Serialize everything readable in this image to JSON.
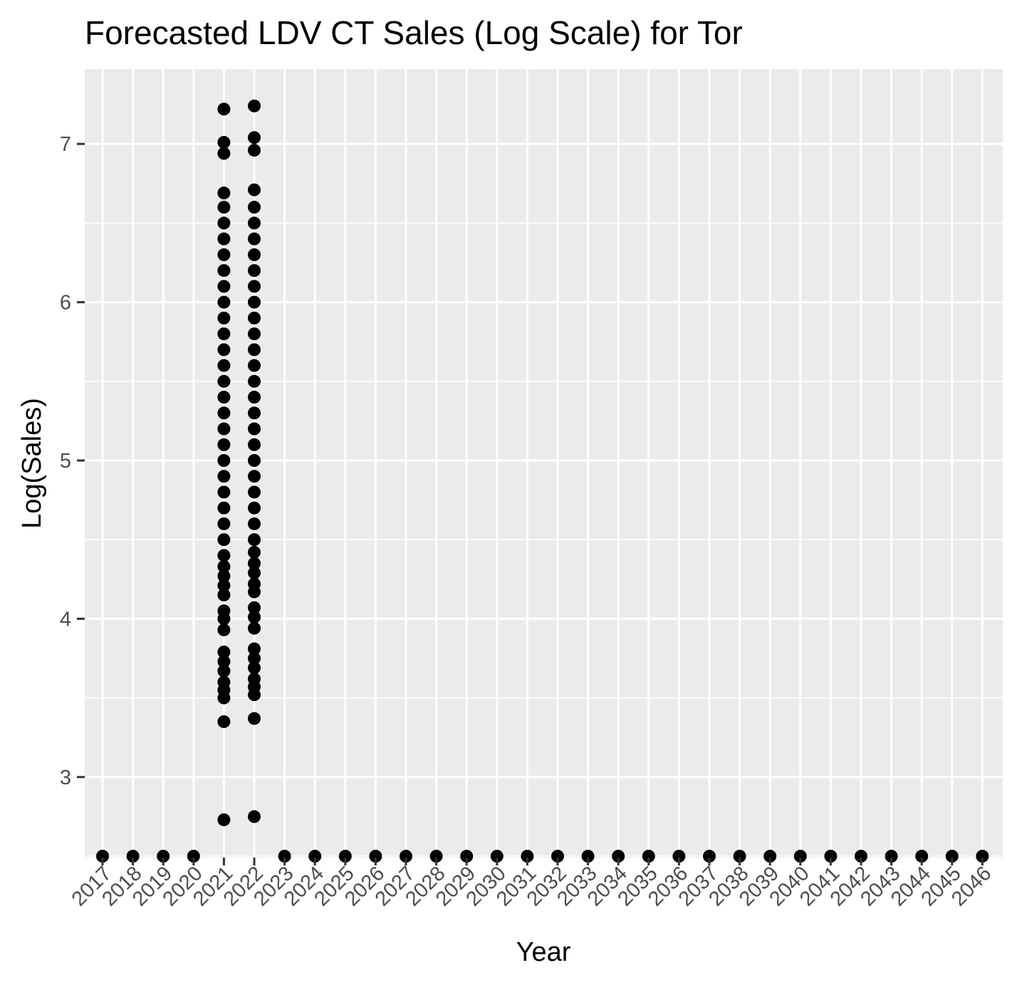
{
  "chart_data": {
    "type": "scatter",
    "title": "Forecasted LDV CT Sales (Log Scale) for Tor",
    "xlabel": "Year",
    "ylabel": "Log(Sales)",
    "x_categories": [
      "2017",
      "2018",
      "2019",
      "2020",
      "2021",
      "2022",
      "2023",
      "2024",
      "2025",
      "2026",
      "2027",
      "2028",
      "2029",
      "2030",
      "2031",
      "2032",
      "2033",
      "2034",
      "2035",
      "2036",
      "2037",
      "2038",
      "2039",
      "2040",
      "2041",
      "2042",
      "2043",
      "2044",
      "2045",
      "2046"
    ],
    "y_ticks": [
      3,
      4,
      5,
      6,
      7
    ],
    "ylim": [
      2.5,
      7.45
    ],
    "grid": true,
    "background": "#ebebeb",
    "point_color": "#000000",
    "series": [
      {
        "points": [
          {
            "x": "2017",
            "y": 2.5
          },
          {
            "x": "2018",
            "y": 2.5
          },
          {
            "x": "2019",
            "y": 2.5
          },
          {
            "x": "2020",
            "y": 2.5
          },
          {
            "x": "2021",
            "y": 7.22
          },
          {
            "x": "2021",
            "y": 7.01
          },
          {
            "x": "2021",
            "y": 6.94
          },
          {
            "x": "2021",
            "y": 6.69
          },
          {
            "x": "2021",
            "y": 6.6
          },
          {
            "x": "2021",
            "y": 6.5
          },
          {
            "x": "2021",
            "y": 6.4
          },
          {
            "x": "2021",
            "y": 6.3
          },
          {
            "x": "2021",
            "y": 6.2
          },
          {
            "x": "2021",
            "y": 6.1
          },
          {
            "x": "2021",
            "y": 6.0
          },
          {
            "x": "2021",
            "y": 5.9
          },
          {
            "x": "2021",
            "y": 5.8
          },
          {
            "x": "2021",
            "y": 5.7
          },
          {
            "x": "2021",
            "y": 5.6
          },
          {
            "x": "2021",
            "y": 5.5
          },
          {
            "x": "2021",
            "y": 5.4
          },
          {
            "x": "2021",
            "y": 5.3
          },
          {
            "x": "2021",
            "y": 5.2
          },
          {
            "x": "2021",
            "y": 5.1
          },
          {
            "x": "2021",
            "y": 5.0
          },
          {
            "x": "2021",
            "y": 4.9
          },
          {
            "x": "2021",
            "y": 4.8
          },
          {
            "x": "2021",
            "y": 4.7
          },
          {
            "x": "2021",
            "y": 4.6
          },
          {
            "x": "2021",
            "y": 4.5
          },
          {
            "x": "2021",
            "y": 4.4
          },
          {
            "x": "2021",
            "y": 4.33
          },
          {
            "x": "2021",
            "y": 4.27
          },
          {
            "x": "2021",
            "y": 4.21
          },
          {
            "x": "2021",
            "y": 4.15
          },
          {
            "x": "2021",
            "y": 4.05
          },
          {
            "x": "2021",
            "y": 4.0
          },
          {
            "x": "2021",
            "y": 3.93
          },
          {
            "x": "2021",
            "y": 3.79
          },
          {
            "x": "2021",
            "y": 3.73
          },
          {
            "x": "2021",
            "y": 3.67
          },
          {
            "x": "2021",
            "y": 3.6
          },
          {
            "x": "2021",
            "y": 3.55
          },
          {
            "x": "2021",
            "y": 3.5
          },
          {
            "x": "2021",
            "y": 3.35
          },
          {
            "x": "2021",
            "y": 2.73
          },
          {
            "x": "2022",
            "y": 7.24
          },
          {
            "x": "2022",
            "y": 7.04
          },
          {
            "x": "2022",
            "y": 6.96
          },
          {
            "x": "2022",
            "y": 6.71
          },
          {
            "x": "2022",
            "y": 6.6
          },
          {
            "x": "2022",
            "y": 6.5
          },
          {
            "x": "2022",
            "y": 6.4
          },
          {
            "x": "2022",
            "y": 6.3
          },
          {
            "x": "2022",
            "y": 6.2
          },
          {
            "x": "2022",
            "y": 6.1
          },
          {
            "x": "2022",
            "y": 6.0
          },
          {
            "x": "2022",
            "y": 5.9
          },
          {
            "x": "2022",
            "y": 5.8
          },
          {
            "x": "2022",
            "y": 5.7
          },
          {
            "x": "2022",
            "y": 5.6
          },
          {
            "x": "2022",
            "y": 5.5
          },
          {
            "x": "2022",
            "y": 5.4
          },
          {
            "x": "2022",
            "y": 5.3
          },
          {
            "x": "2022",
            "y": 5.2
          },
          {
            "x": "2022",
            "y": 5.1
          },
          {
            "x": "2022",
            "y": 5.0
          },
          {
            "x": "2022",
            "y": 4.9
          },
          {
            "x": "2022",
            "y": 4.8
          },
          {
            "x": "2022",
            "y": 4.7
          },
          {
            "x": "2022",
            "y": 4.6
          },
          {
            "x": "2022",
            "y": 4.5
          },
          {
            "x": "2022",
            "y": 4.42
          },
          {
            "x": "2022",
            "y": 4.35
          },
          {
            "x": "2022",
            "y": 4.29
          },
          {
            "x": "2022",
            "y": 4.22
          },
          {
            "x": "2022",
            "y": 4.17
          },
          {
            "x": "2022",
            "y": 4.07
          },
          {
            "x": "2022",
            "y": 4.01
          },
          {
            "x": "2022",
            "y": 3.94
          },
          {
            "x": "2022",
            "y": 3.81
          },
          {
            "x": "2022",
            "y": 3.75
          },
          {
            "x": "2022",
            "y": 3.69
          },
          {
            "x": "2022",
            "y": 3.62
          },
          {
            "x": "2022",
            "y": 3.57
          },
          {
            "x": "2022",
            "y": 3.52
          },
          {
            "x": "2022",
            "y": 3.37
          },
          {
            "x": "2022",
            "y": 2.75
          },
          {
            "x": "2023",
            "y": 2.5
          },
          {
            "x": "2024",
            "y": 2.5
          },
          {
            "x": "2025",
            "y": 2.5
          },
          {
            "x": "2026",
            "y": 2.5
          },
          {
            "x": "2027",
            "y": 2.5
          },
          {
            "x": "2028",
            "y": 2.5
          },
          {
            "x": "2029",
            "y": 2.5
          },
          {
            "x": "2030",
            "y": 2.5
          },
          {
            "x": "2031",
            "y": 2.5
          },
          {
            "x": "2032",
            "y": 2.5
          },
          {
            "x": "2033",
            "y": 2.5
          },
          {
            "x": "2034",
            "y": 2.5
          },
          {
            "x": "2035",
            "y": 2.5
          },
          {
            "x": "2036",
            "y": 2.5
          },
          {
            "x": "2037",
            "y": 2.5
          },
          {
            "x": "2038",
            "y": 2.5
          },
          {
            "x": "2039",
            "y": 2.5
          },
          {
            "x": "2040",
            "y": 2.5
          },
          {
            "x": "2041",
            "y": 2.5
          },
          {
            "x": "2042",
            "y": 2.5
          },
          {
            "x": "2043",
            "y": 2.5
          },
          {
            "x": "2044",
            "y": 2.5
          },
          {
            "x": "2045",
            "y": 2.5
          },
          {
            "x": "2046",
            "y": 2.5
          }
        ]
      }
    ]
  }
}
